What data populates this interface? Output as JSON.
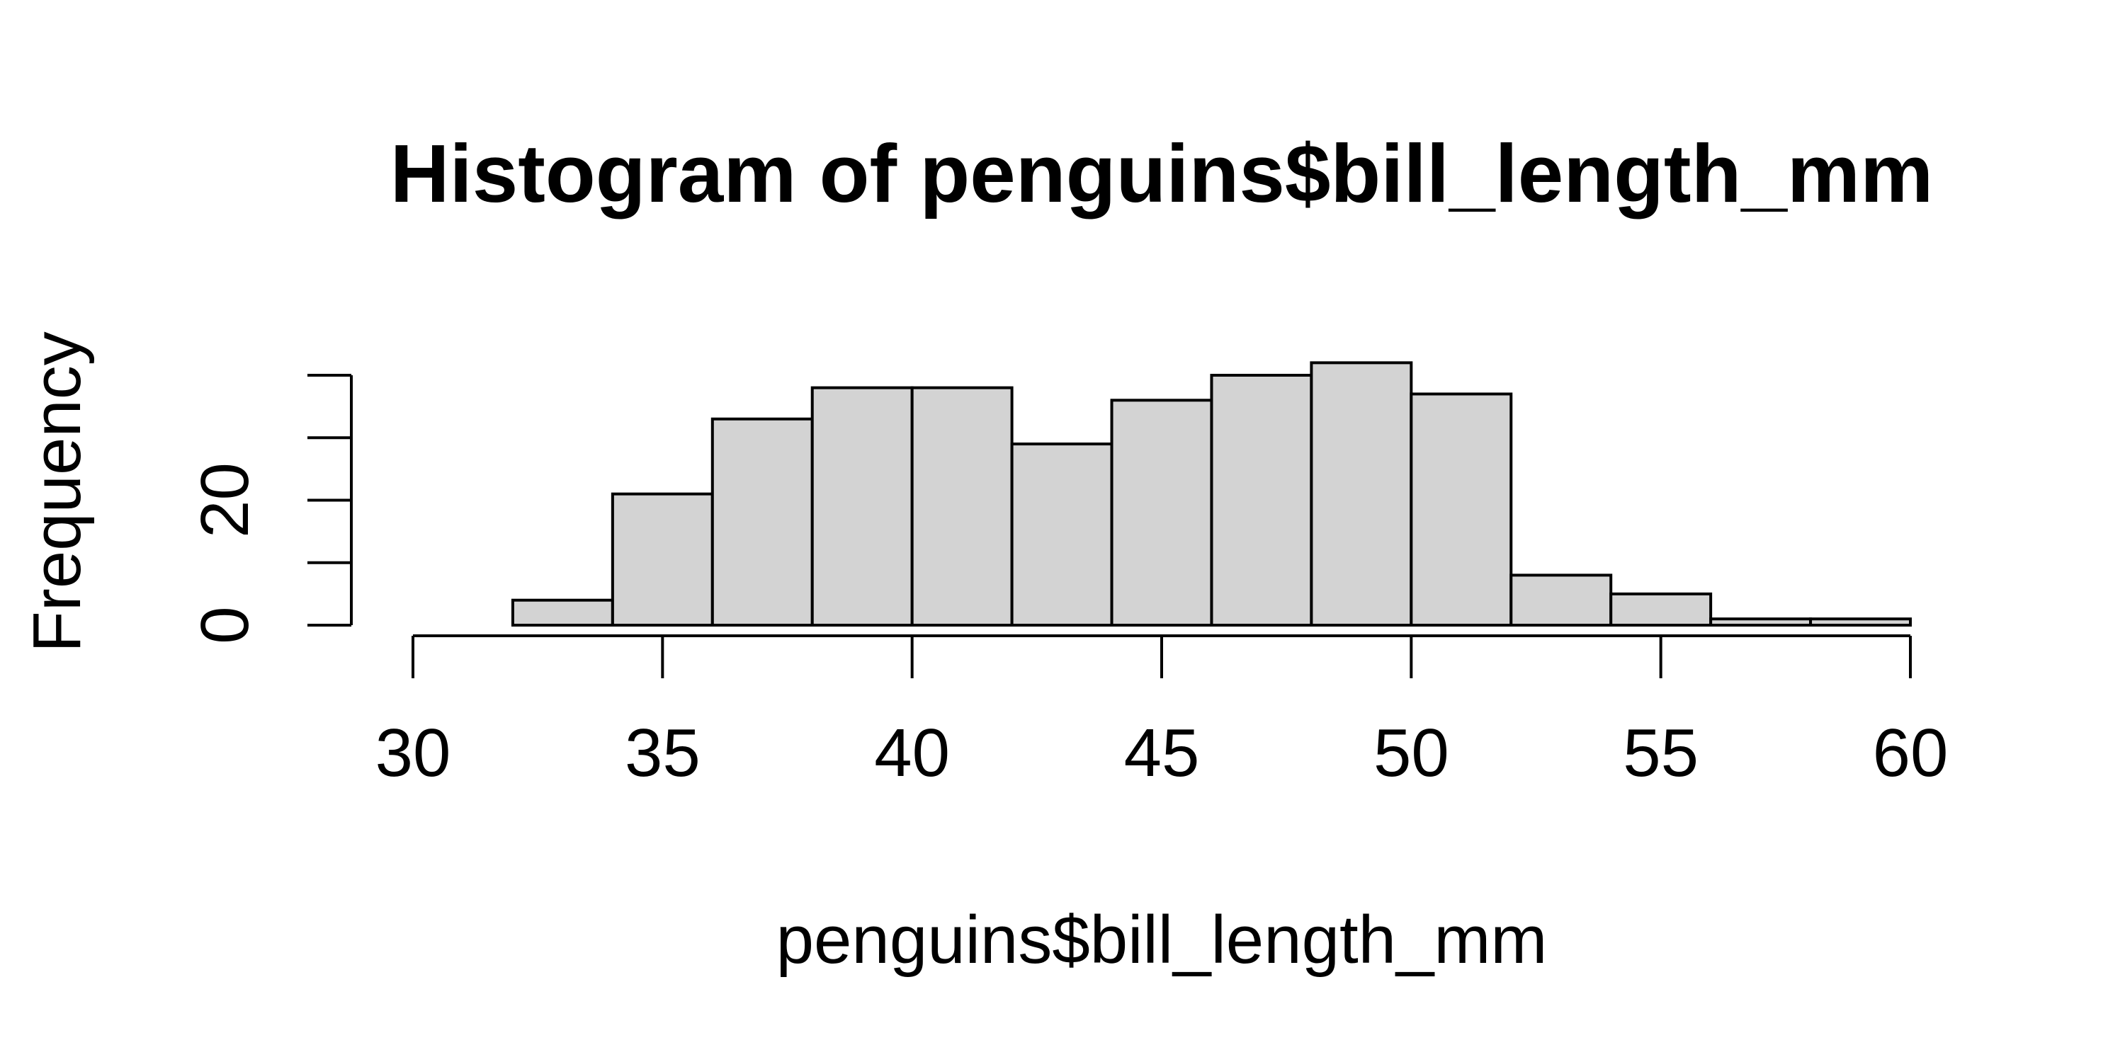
{
  "chart_data": {
    "type": "bar",
    "title": "Histogram of penguins$bill_length_mm",
    "xlabel": "penguins$bill_length_mm",
    "ylabel": "Frequency",
    "bins": [
      {
        "from": 32,
        "to": 34,
        "count": 4
      },
      {
        "from": 34,
        "to": 36,
        "count": 21
      },
      {
        "from": 36,
        "to": 38,
        "count": 33
      },
      {
        "from": 38,
        "to": 40,
        "count": 38
      },
      {
        "from": 40,
        "to": 42,
        "count": 38
      },
      {
        "from": 42,
        "to": 44,
        "count": 29
      },
      {
        "from": 44,
        "to": 46,
        "count": 36
      },
      {
        "from": 46,
        "to": 48,
        "count": 40
      },
      {
        "from": 48,
        "to": 50,
        "count": 42
      },
      {
        "from": 50,
        "to": 52,
        "count": 37
      },
      {
        "from": 52,
        "to": 54,
        "count": 8
      },
      {
        "from": 54,
        "to": 56,
        "count": 5
      },
      {
        "from": 56,
        "to": 58,
        "count": 1
      },
      {
        "from": 58,
        "to": 60,
        "count": 1
      }
    ],
    "xlim": [
      30,
      60
    ],
    "ylim": [
      0,
      40
    ],
    "x_ticks": [
      30,
      35,
      40,
      45,
      50,
      55,
      60
    ],
    "y_ticks": [
      0,
      10,
      20,
      30,
      40
    ],
    "y_tick_labels": [
      "0",
      "",
      "20",
      "",
      ""
    ],
    "bar_fill": "#d3d3d3",
    "bar_stroke": "#000000",
    "grid": false,
    "legend": "none"
  }
}
